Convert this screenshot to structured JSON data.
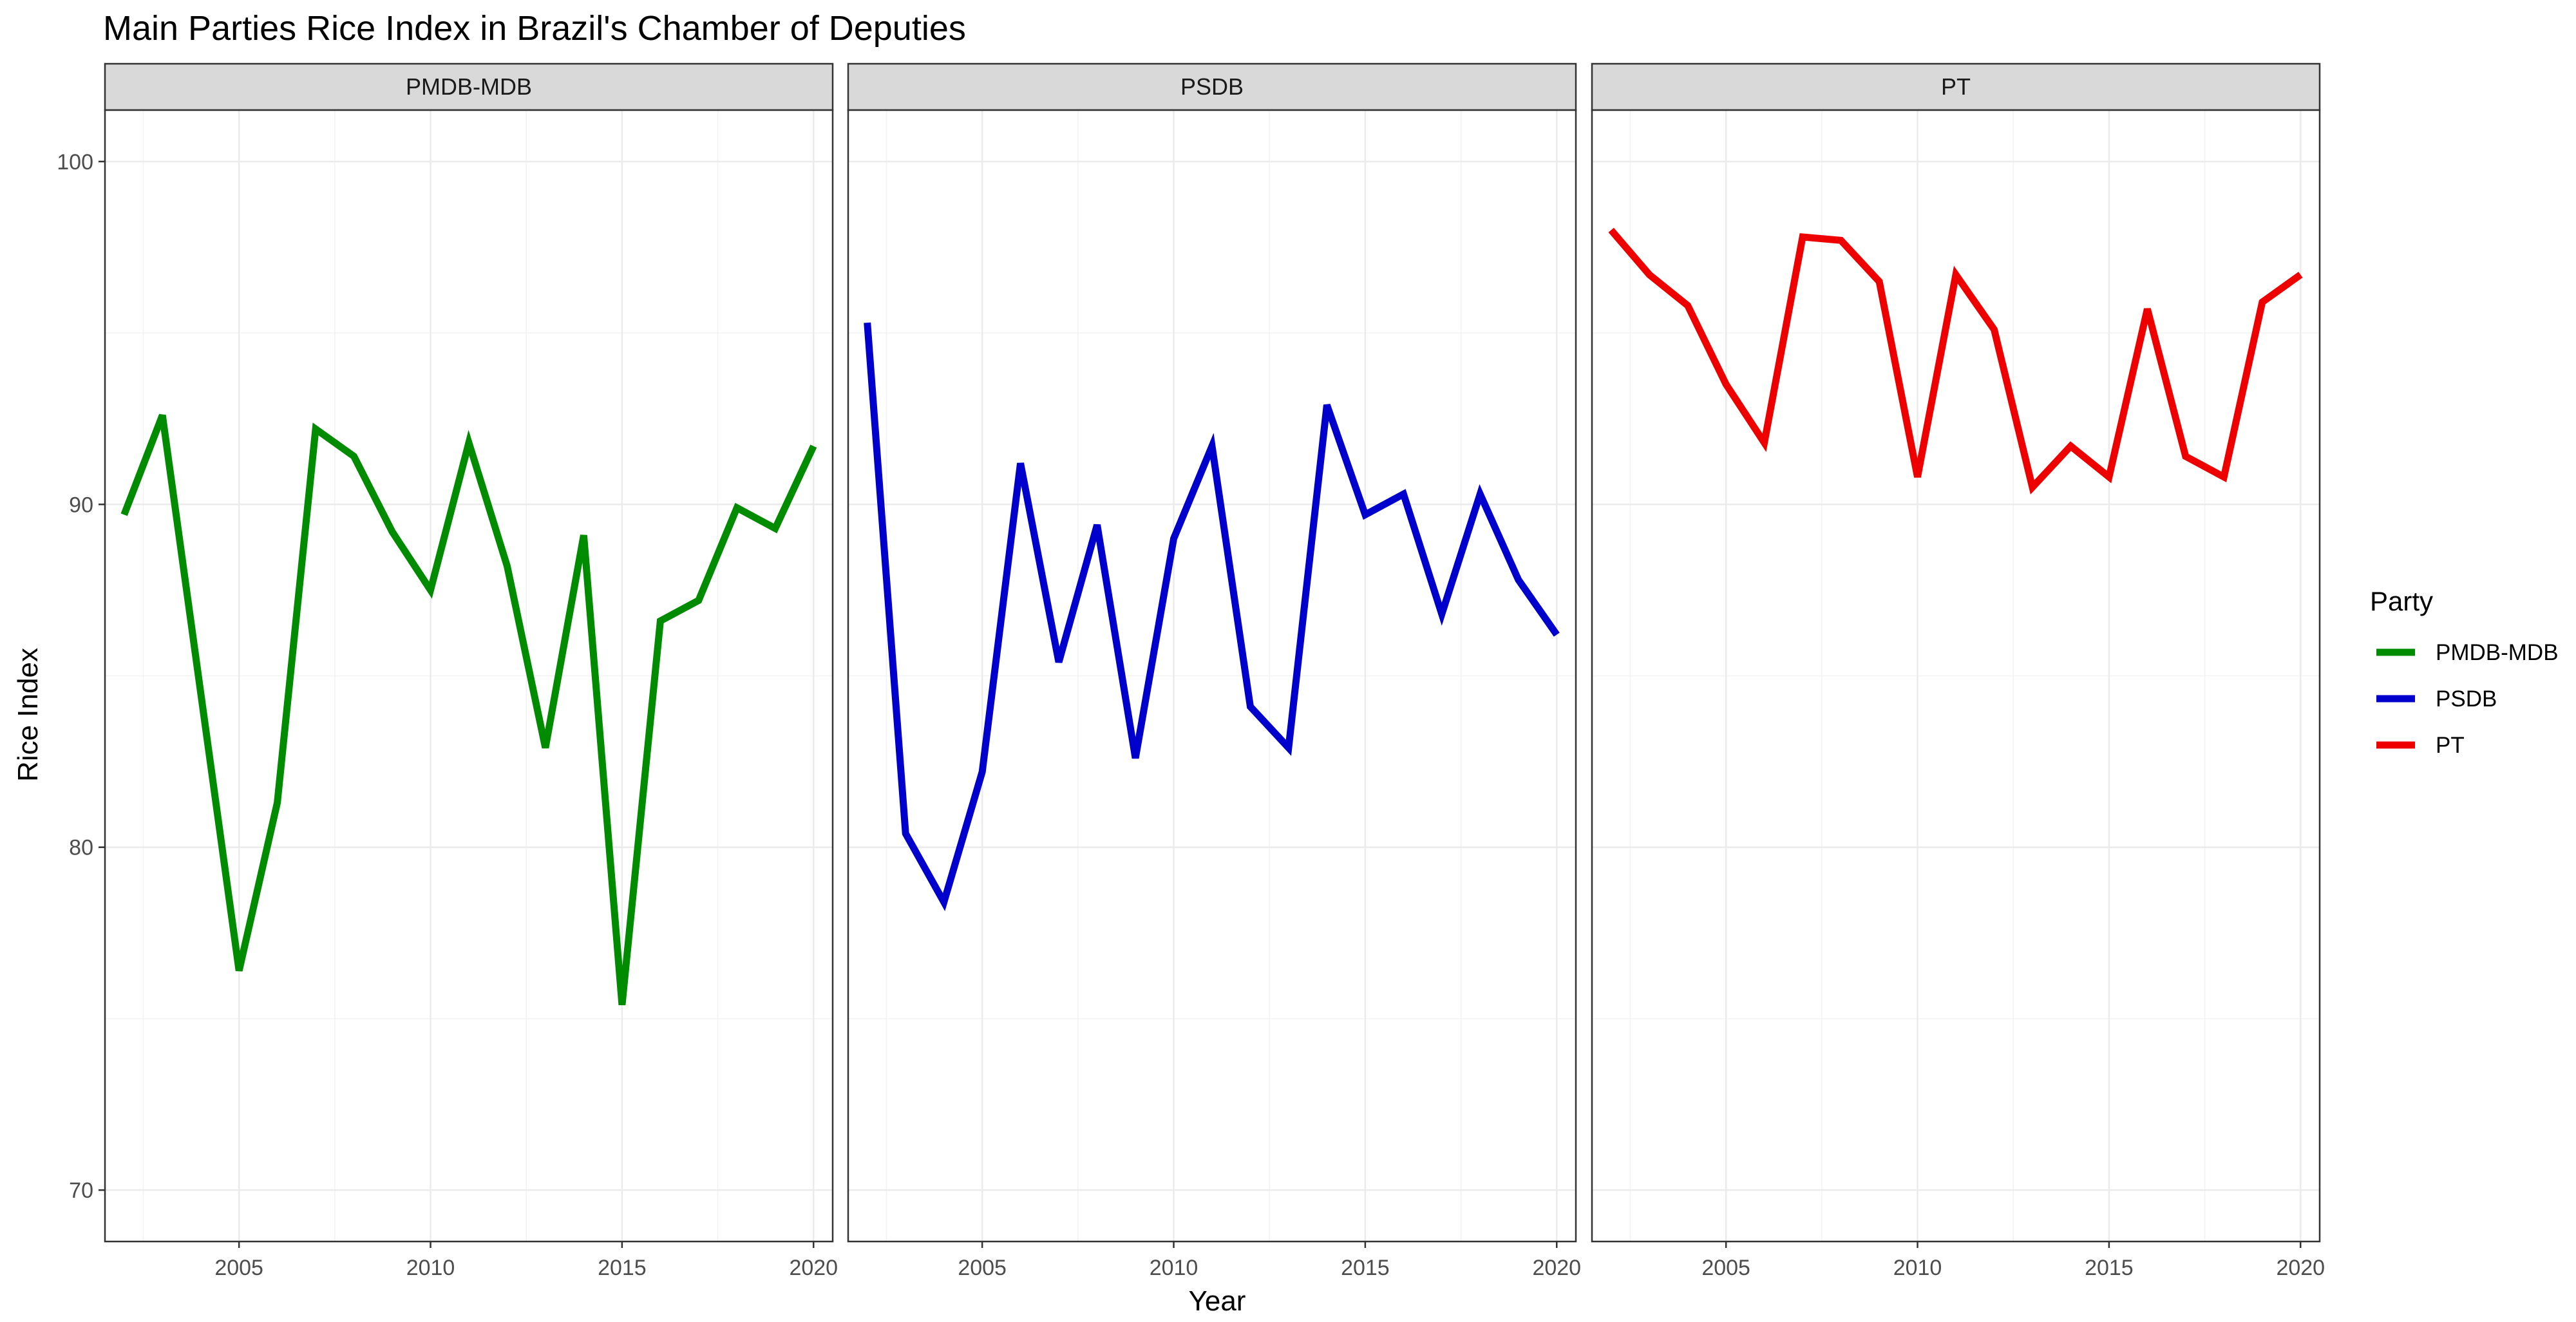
{
  "chart_data": {
    "type": "line",
    "title": "Main Parties Rice Index in Brazil's Chamber of Deputies",
    "xlabel": "Year",
    "ylabel": "Rice Index",
    "xlim": [
      2001.5,
      2020.5
    ],
    "ylim": [
      68.5,
      101.5
    ],
    "x_ticks": [
      2005,
      2010,
      2015,
      2020
    ],
    "y_ticks": [
      70,
      80,
      90,
      100
    ],
    "grid": true,
    "facets": [
      "PMDB-MDB",
      "PSDB",
      "PT"
    ],
    "legend": {
      "title": "Party",
      "position": "right"
    },
    "x": [
      2002,
      2003,
      2004,
      2005,
      2006,
      2007,
      2008,
      2009,
      2010,
      2011,
      2012,
      2013,
      2014,
      2015,
      2016,
      2017,
      2018,
      2019,
      2020
    ],
    "series": [
      {
        "name": "PMDB-MDB",
        "color": "#008B00",
        "values": [
          89.7,
          92.6,
          84.5,
          76.4,
          81.3,
          92.2,
          91.4,
          89.2,
          87.5,
          91.8,
          88.2,
          82.9,
          89.1,
          75.4,
          86.6,
          87.2,
          89.9,
          89.3,
          91.7
        ]
      },
      {
        "name": "PSDB",
        "color": "#0000CD",
        "values": [
          95.3,
          80.4,
          78.4,
          82.2,
          91.2,
          85.4,
          89.4,
          82.6,
          89.0,
          91.7,
          84.1,
          82.9,
          92.9,
          89.7,
          90.3,
          86.8,
          90.3,
          87.8,
          86.2
        ]
      },
      {
        "name": "PT",
        "color": "#EE0000",
        "values": [
          98.0,
          96.7,
          95.8,
          93.5,
          91.8,
          97.8,
          97.7,
          96.5,
          90.8,
          96.7,
          95.1,
          90.5,
          91.7,
          90.8,
          95.7,
          91.4,
          90.8,
          95.9,
          96.7
        ]
      }
    ]
  }
}
